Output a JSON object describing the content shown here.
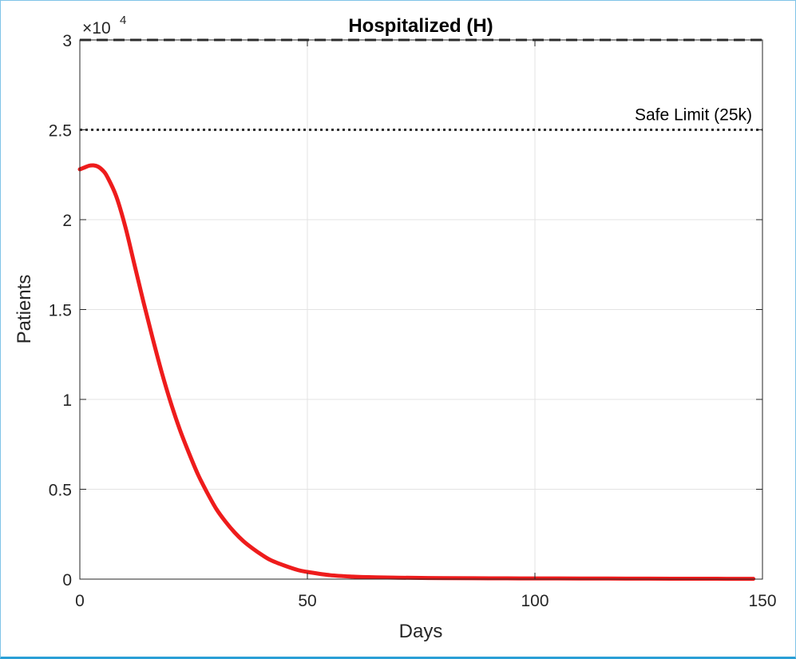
{
  "chart_data": {
    "type": "line",
    "title": "Hospitalized (H)",
    "xlabel": "Days",
    "ylabel": "Patients",
    "y_exponent_base": "×10",
    "y_exponent_power": "4",
    "xlim": [
      0,
      150
    ],
    "ylim": [
      0,
      30000
    ],
    "grid": true,
    "x_ticks": [
      0,
      50,
      100,
      150
    ],
    "x_tick_labels": [
      "0",
      "50",
      "100",
      "150"
    ],
    "y_ticks": [
      0,
      5000,
      10000,
      15000,
      20000,
      25000,
      30000
    ],
    "y_tick_labels": [
      "0",
      "0.5",
      "1",
      "1.5",
      "2",
      "2.5",
      "3"
    ],
    "colors": {
      "series": "#ee1c1c",
      "reference": "#333333",
      "grid": "#e3e3e3",
      "axis": "#262626"
    },
    "reference_lines": [
      {
        "y": 30000,
        "style": "dashed",
        "label": ""
      },
      {
        "y": 25000,
        "style": "dotted",
        "label": "Safe Limit (25k)"
      }
    ],
    "series": [
      {
        "x": [
          0,
          1,
          2,
          3,
          4,
          5,
          6,
          8,
          10,
          12,
          14,
          16,
          18,
          20,
          22,
          24,
          26,
          28,
          30,
          32,
          34,
          36,
          38,
          40,
          42,
          45,
          48,
          50,
          55,
          60,
          65,
          70,
          75,
          80,
          90,
          100,
          110,
          120,
          130,
          140,
          148
        ],
        "y": [
          22800,
          22900,
          23000,
          23020,
          22950,
          22750,
          22400,
          21300,
          19600,
          17500,
          15400,
          13400,
          11500,
          9800,
          8300,
          7000,
          5800,
          4800,
          3900,
          3200,
          2600,
          2100,
          1700,
          1350,
          1050,
          750,
          500,
          400,
          220,
          140,
          100,
          80,
          65,
          55,
          45,
          40,
          35,
          30,
          25,
          20,
          15
        ]
      }
    ]
  }
}
